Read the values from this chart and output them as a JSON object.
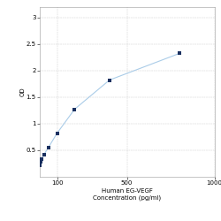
{
  "x_values": [
    1,
    3.125,
    6.25,
    12.5,
    25,
    50,
    100,
    200,
    400,
    800
  ],
  "y_values": [
    0.22,
    0.25,
    0.28,
    0.33,
    0.42,
    0.55,
    0.82,
    1.27,
    1.82,
    2.32
  ],
  "line_color": "#aacce8",
  "marker_color": "#1a3060",
  "marker_style": "s",
  "marker_size": 3,
  "ylabel": "OD",
  "xlabel_tick": "100",
  "xlabel_line1": "Human EG-VEGF",
  "xlabel_line2": "Concentration (pg/ml)",
  "xlim_min": 1,
  "xlim_max": 1000,
  "ylim_min": 0.0,
  "ylim_max": 3.2,
  "yticks": [
    0.5,
    1.0,
    1.5,
    2.0,
    2.5,
    3.0
  ],
  "ytick_labels": [
    "0.5",
    "1",
    "1.5",
    "2",
    "2.5",
    "3"
  ],
  "xticks": [
    100,
    500,
    1000
  ],
  "xtick_labels": [
    "100",
    "500",
    "1000"
  ],
  "grid_color": "#cccccc",
  "background_color": "#ffffff",
  "axis_fontsize": 5,
  "tick_fontsize": 5,
  "line_width": 0.8
}
